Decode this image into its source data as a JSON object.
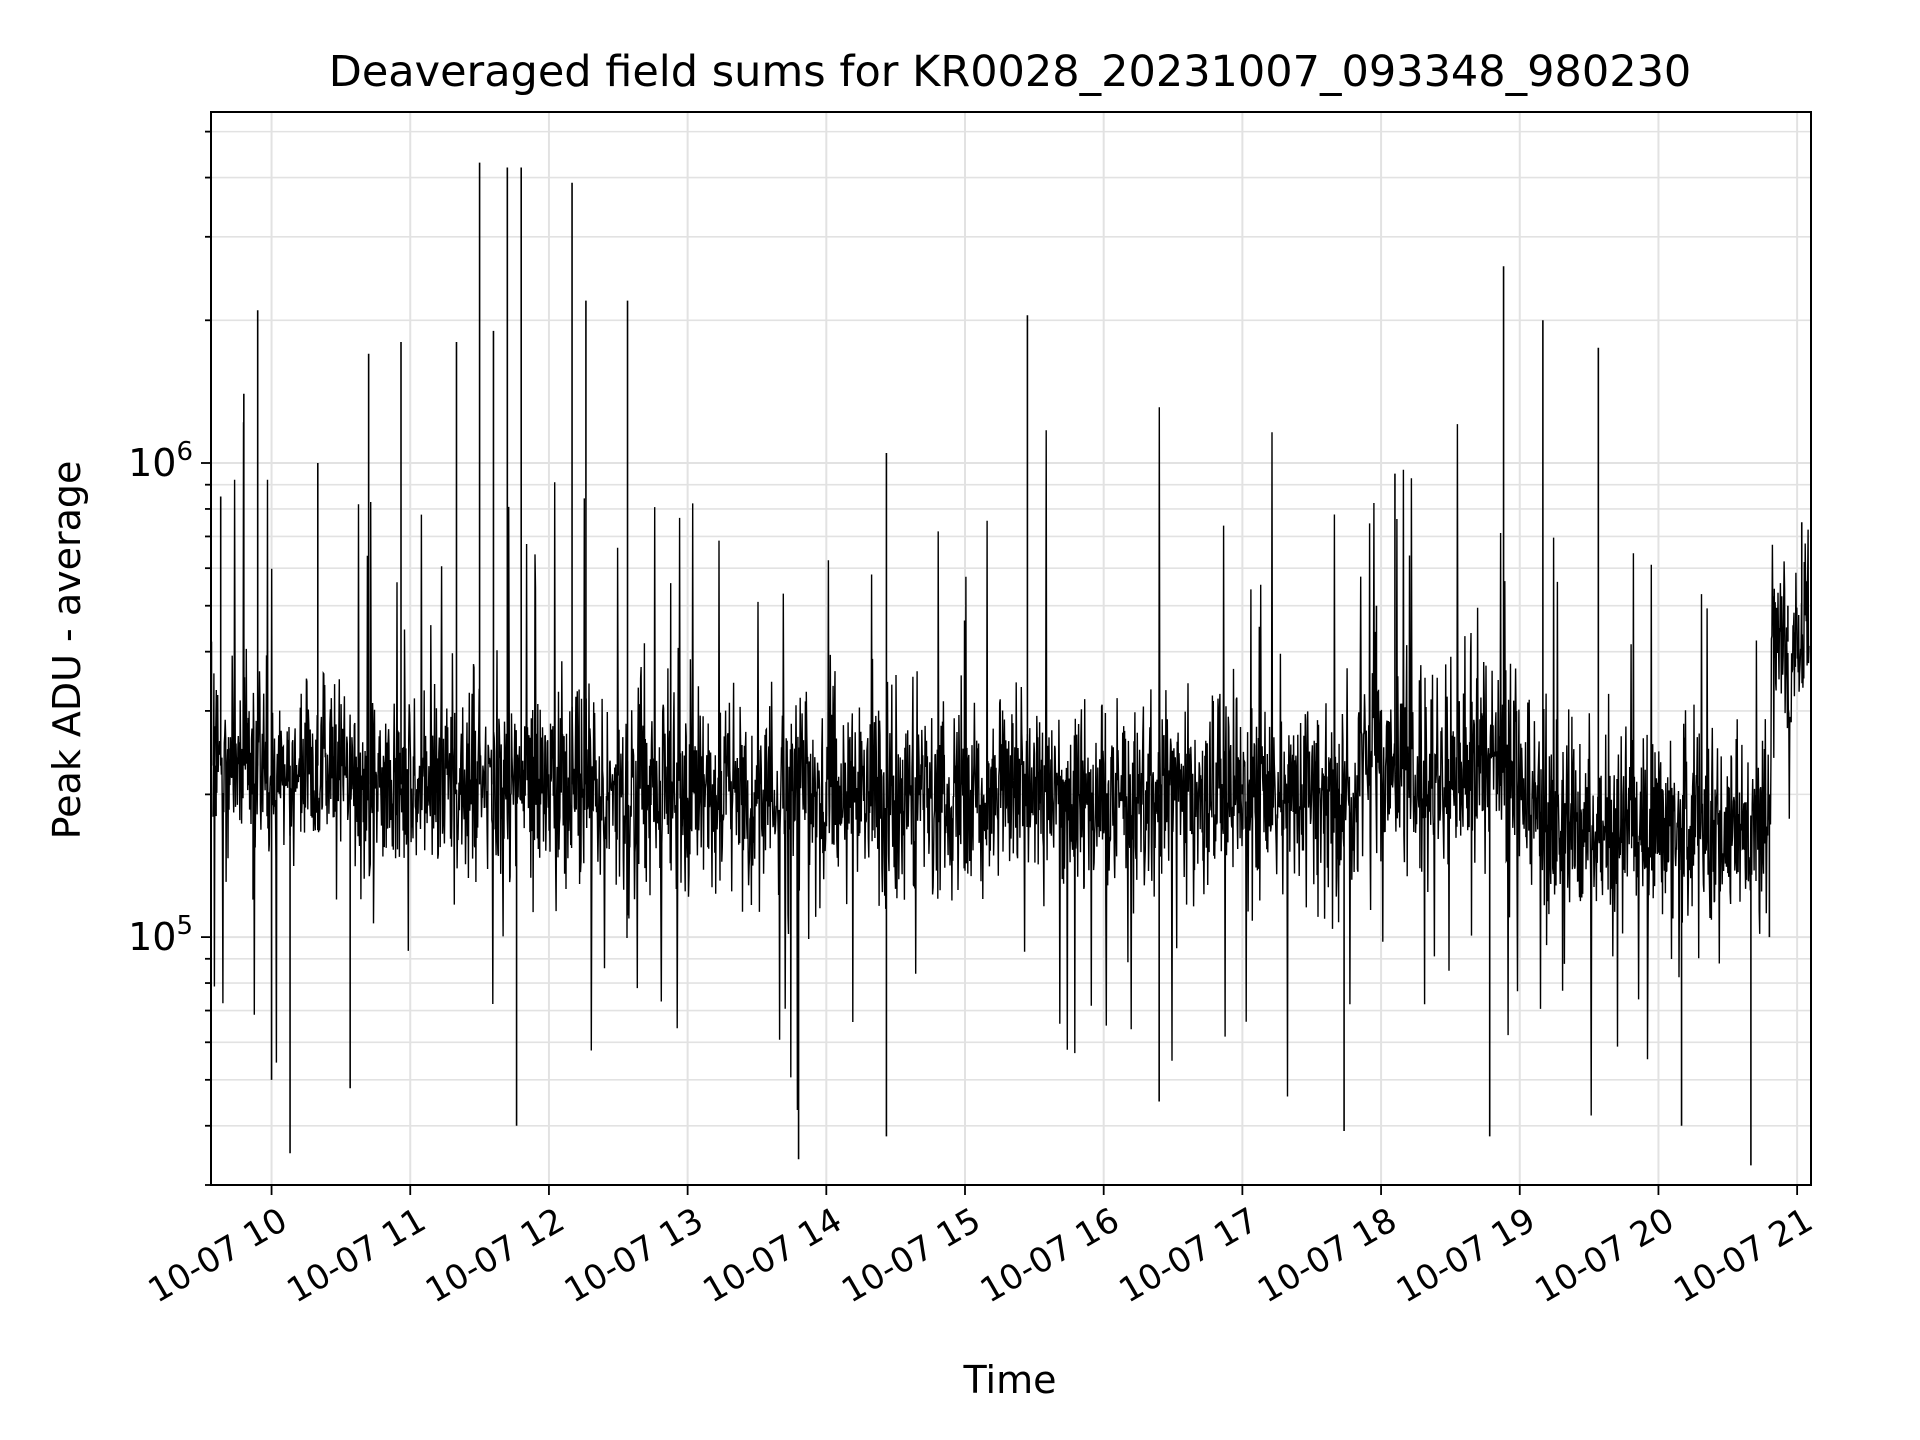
{
  "chart_data": {
    "type": "line",
    "title": "Deaveraged field sums for KR0028_20231007_093348_980230",
    "xlabel": "Time",
    "ylabel": "Peak ADU - average",
    "x_scale": "time",
    "y_scale": "log",
    "xlim": [
      "2023-10-07T09:33:48",
      "2023-10-07T21:06:00"
    ],
    "ylim": [
      30000,
      5500000
    ],
    "grid": true,
    "legend": null,
    "line_color": "#000000",
    "x_ticks": [
      {
        "value": "2023-10-07T10:00:00",
        "label": "10-07 10"
      },
      {
        "value": "2023-10-07T11:00:00",
        "label": "10-07 11"
      },
      {
        "value": "2023-10-07T12:00:00",
        "label": "10-07 12"
      },
      {
        "value": "2023-10-07T13:00:00",
        "label": "10-07 13"
      },
      {
        "value": "2023-10-07T14:00:00",
        "label": "10-07 14"
      },
      {
        "value": "2023-10-07T15:00:00",
        "label": "10-07 15"
      },
      {
        "value": "2023-10-07T16:00:00",
        "label": "10-07 16"
      },
      {
        "value": "2023-10-07T17:00:00",
        "label": "10-07 17"
      },
      {
        "value": "2023-10-07T18:00:00",
        "label": "10-07 18"
      },
      {
        "value": "2023-10-07T19:00:00",
        "label": "10-07 19"
      },
      {
        "value": "2023-10-07T20:00:00",
        "label": "10-07 20"
      },
      {
        "value": "2023-10-07T21:00:00",
        "label": "10-07 21"
      }
    ],
    "y_ticks": [
      {
        "value": 100000,
        "label": "10^5"
      },
      {
        "value": 1000000,
        "label": "10^6"
      }
    ],
    "series": [
      {
        "values_description": "dense noisy signal; approximate representative samples (time, value)",
        "points": [
          [
            "2023-10-07T09:34",
            420000
          ],
          [
            "2023-10-07T09:36",
            180000
          ],
          [
            "2023-10-07T09:38",
            850000
          ],
          [
            "2023-10-07T09:42",
            250000
          ],
          [
            "2023-10-07T09:48",
            1400000
          ],
          [
            "2023-10-07T09:52",
            120000
          ],
          [
            "2023-10-07T09:54",
            2100000
          ],
          [
            "2023-10-07T10:00",
            50000
          ],
          [
            "2023-10-07T10:08",
            35000
          ],
          [
            "2023-10-07T10:20",
            1000000
          ],
          [
            "2023-10-07T10:34",
            48000
          ],
          [
            "2023-10-07T10:42",
            1700000
          ],
          [
            "2023-10-07T10:56",
            1800000
          ],
          [
            "2023-10-07T11:20",
            1800000
          ],
          [
            "2023-10-07T11:30",
            4300000
          ],
          [
            "2023-10-07T11:36",
            1900000
          ],
          [
            "2023-10-07T11:42",
            4200000
          ],
          [
            "2023-10-07T11:46",
            40000
          ],
          [
            "2023-10-07T11:48",
            4200000
          ],
          [
            "2023-10-07T12:10",
            3900000
          ],
          [
            "2023-10-07T12:16",
            2200000
          ],
          [
            "2023-10-07T12:34",
            2200000
          ],
          [
            "2023-10-07T13:00",
            200000
          ],
          [
            "2023-10-07T13:48",
            34000
          ],
          [
            "2023-10-07T14:00",
            180000
          ],
          [
            "2023-10-07T14:26",
            1050000
          ],
          [
            "2023-10-07T14:26",
            38000
          ],
          [
            "2023-10-07T15:00",
            190000
          ],
          [
            "2023-10-07T15:27",
            2050000
          ],
          [
            "2023-10-07T16:00",
            200000
          ],
          [
            "2023-10-07T16:24",
            45000
          ],
          [
            "2023-10-07T17:00",
            210000
          ],
          [
            "2023-10-07T17:44",
            39000
          ],
          [
            "2023-10-07T17:58",
            500000
          ],
          [
            "2023-10-07T18:06",
            950000
          ],
          [
            "2023-10-07T18:47",
            38000
          ],
          [
            "2023-10-07T18:53",
            2600000
          ],
          [
            "2023-10-07T19:10",
            2000000
          ],
          [
            "2023-10-07T19:34",
            1750000
          ],
          [
            "2023-10-07T20:00",
            160000
          ],
          [
            "2023-10-07T20:10",
            40000
          ],
          [
            "2023-10-07T20:40",
            33000
          ],
          [
            "2023-10-07T20:48",
            100000
          ],
          [
            "2023-10-07T20:56",
            500000
          ],
          [
            "2023-10-07T21:02",
            750000
          ],
          [
            "2023-10-07T21:06",
            400000
          ]
        ]
      }
    ]
  }
}
